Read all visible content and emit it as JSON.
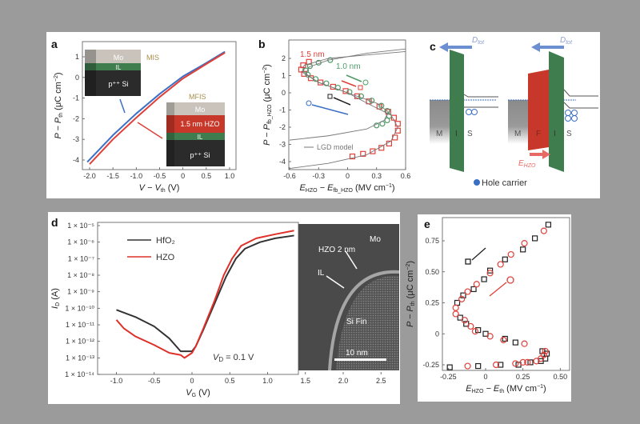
{
  "colors": {
    "background": "#9b9b9b",
    "panel": "#ffffff",
    "blue": "#3b6fc4",
    "red": "#e0403a",
    "green": "#4e9a68",
    "black": "#222222",
    "gray_curve": "#777777",
    "green_layer": "#3f7d4f",
    "red_layer": "#c8382a"
  },
  "panel_labels": [
    "a",
    "b",
    "c",
    "d",
    "e"
  ],
  "chart_data": [
    {
      "panel": "a",
      "type": "line",
      "xlabel": {
        "main": "V − V",
        "sub": "th",
        "unit": " (V)"
      },
      "ylabel": {
        "main": "P − P",
        "sub": "th",
        "unit": " (μC cm",
        "sup": "−2",
        "close": ")"
      },
      "xlim": [
        -2.2,
        1.1
      ],
      "ylim": [
        -4.5,
        1.5
      ],
      "xticks": [
        "-2.0",
        "-1.5",
        "-1.0",
        "-0.5",
        "0",
        "0.5",
        "1.0"
      ],
      "xtick_values": [
        -2,
        -1.5,
        -1,
        -0.5,
        0,
        0.5,
        1
      ],
      "yticks": [
        "1",
        "0",
        "-1",
        "-2",
        "-3",
        "-4"
      ],
      "ytick_values": [
        1,
        0,
        -1,
        -2,
        -3,
        -4
      ],
      "series": [
        {
          "name": "MIS",
          "color": "#3b6fc4",
          "x": [
            -2.05,
            -1.5,
            -1.0,
            -0.5,
            0,
            0.5,
            0.9
          ],
          "y": [
            -4.1,
            -2.8,
            -1.75,
            -0.8,
            0.05,
            0.7,
            1.25
          ]
        },
        {
          "name": "MFIS",
          "color": "#e0403a",
          "x": [
            -2.0,
            -1.5,
            -1.0,
            -0.5,
            0,
            0.5,
            0.9
          ],
          "y": [
            -4.2,
            -3.0,
            -1.95,
            -0.95,
            -0.05,
            0.65,
            1.2
          ]
        }
      ],
      "insets": {
        "mis": {
          "title": "MIS",
          "layers": [
            "Mo",
            "IL",
            "p⁺⁺ Si"
          ]
        },
        "mfis": {
          "title": "MFIS",
          "layers": [
            "Mo",
            "1.5 nm HZO",
            "IL",
            "p⁺⁺ Si"
          ]
        }
      }
    },
    {
      "panel": "b",
      "type": "scatter",
      "xlabel": {
        "main": "E",
        "sub": "HZO",
        "mid": " − E",
        "sub2": "fb_HZO",
        "unit": " (MV cm",
        "sup": "−1",
        "close": ")"
      },
      "ylabel": {
        "main": "P − P",
        "sub": "fb_HZO",
        "unit": " (μC cm",
        "sup": "−2",
        "close": ")"
      },
      "xlim": [
        -0.6,
        0.6
      ],
      "ylim": [
        -4.4,
        2.6
      ],
      "xticks": [
        "-0.6",
        "-0.3",
        "0",
        "0.3",
        "0.6"
      ],
      "xtick_values": [
        -0.6,
        -0.3,
        0,
        0.3,
        0.6
      ],
      "yticks": [
        "2",
        "1",
        "0",
        "-1",
        "-2",
        "-3",
        "-4"
      ],
      "ytick_values": [
        2,
        1,
        0,
        -1,
        -2,
        -3,
        -4
      ],
      "series": [
        {
          "name": "1.5 nm",
          "marker": "square",
          "color": "#e0403a",
          "x": [
            -0.4,
            -0.46,
            -0.48,
            -0.45,
            -0.38,
            -0.28,
            -0.15,
            -0.02,
            0.1,
            0.22,
            0.33,
            0.42,
            0.48,
            0.52,
            0.52,
            0.49,
            0.43,
            0.35,
            0.26,
            0.16,
            0.05
          ],
          "y": [
            1.8,
            1.6,
            1.35,
            1.1,
            0.85,
            0.6,
            0.35,
            0.1,
            -0.2,
            -0.5,
            -0.8,
            -1.1,
            -1.45,
            -1.8,
            -2.2,
            -2.6,
            -2.95,
            -3.2,
            -3.4,
            -3.55,
            -3.7
          ]
        },
        {
          "name": "1.0 nm",
          "marker": "circle",
          "color": "#4e9a68",
          "x": [
            -0.18,
            -0.3,
            -0.39,
            -0.43,
            -0.41,
            -0.33,
            -0.22,
            -0.1,
            0.02,
            0.14,
            0.25,
            0.35,
            0.41,
            0.43,
            0.41,
            0.36,
            0.3
          ],
          "y": [
            1.9,
            1.75,
            1.55,
            1.3,
            1.05,
            0.8,
            0.55,
            0.3,
            0.05,
            -0.2,
            -0.45,
            -0.75,
            -1.05,
            -1.35,
            -1.6,
            -1.8,
            -1.9
          ]
        },
        {
          "name": "LGD model",
          "marker": "line",
          "color": "#777777",
          "x": [
            -0.6,
            -0.2,
            0.2,
            0.38,
            0.42,
            0.3,
            0,
            -0.3,
            -0.43,
            -0.4,
            -0.2,
            0.2,
            0.6
          ],
          "y": [
            -2.75,
            -2.5,
            -2.1,
            -1.6,
            -1.1,
            -0.6,
            0,
            0.6,
            1.1,
            1.5,
            1.9,
            2.3,
            2.55
          ]
        },
        {
          "marker": "line",
          "color": "#777777",
          "x": [
            -0.6,
            -0.2,
            0.2,
            0.45,
            0.52,
            0.45,
            0.2,
            0,
            -0.3,
            -0.47,
            -0.45,
            -0.2,
            0.2,
            0.6
          ],
          "y": [
            -4.4,
            -4.1,
            -3.6,
            -2.8,
            -2.0,
            -1.3,
            -0.6,
            0,
            0.6,
            1.2,
            1.6,
            2.0,
            2.2,
            2.4
          ]
        }
      ],
      "legend": {
        "lgd": "LGD model",
        "label_15": "1.5 nm",
        "label_10": "1.0 nm"
      }
    },
    {
      "panel": "d",
      "type": "line",
      "yscale": "log",
      "xlabel": {
        "main": "V",
        "sub": "G",
        "unit": " (V)"
      },
      "ylabel": {
        "main": "I",
        "sub": "D",
        "unit": " (A)"
      },
      "xlim": [
        -1.2,
        2.7
      ],
      "ylim": [
        1e-14,
        1e-05
      ],
      "xticks": [
        "-1.0",
        "-0.5",
        "0",
        "0.5",
        "1.0",
        "1.5",
        "2.0",
        "2.5"
      ],
      "xtick_values": [
        -1,
        -0.5,
        0,
        0.5,
        1,
        1.5,
        2,
        2.5
      ],
      "yticks": [
        "1 × 10⁻⁵",
        "1 × 10⁻⁶",
        "1 × 10⁻⁷",
        "1 × 10⁻⁸",
        "1 × 10⁻⁹",
        "1 × 10⁻¹⁰",
        "1 × 10⁻¹¹",
        "1 × 10⁻¹²",
        "1 × 10⁻¹³",
        "1 × 10⁻¹⁴"
      ],
      "ytick_exponents": [
        -5,
        -6,
        -7,
        -8,
        -9,
        -10,
        -11,
        -12,
        -13,
        -14
      ],
      "series": [
        {
          "name": "HfO₂",
          "color": "#333333",
          "x": [
            -1.0,
            -0.75,
            -0.5,
            -0.3,
            -0.15,
            0,
            0.05,
            0.15,
            0.3,
            0.45,
            0.58,
            0.7,
            0.9,
            1.1,
            1.35
          ],
          "y": [
            8e-11,
            3e-11,
            8e-12,
            1.5e-12,
            2.5e-13,
            2.5e-13,
            5e-13,
            5e-12,
            2e-10,
            8e-09,
            1e-07,
            4e-07,
            1e-06,
            1.7e-06,
            2.5e-06
          ]
        },
        {
          "name": "HZO",
          "color": "#e0302a",
          "x": [
            -1.0,
            -0.9,
            -0.75,
            -0.5,
            -0.3,
            -0.15,
            -0.1,
            0,
            0.05,
            0.15,
            0.3,
            0.42,
            0.53,
            0.65,
            0.85,
            1.1,
            1.35
          ],
          "y": [
            2e-11,
            6e-12,
            2e-12,
            6e-13,
            2e-13,
            1.5e-13,
            1e-13,
            2e-13,
            5e-13,
            6e-12,
            3e-10,
            1e-08,
            1e-07,
            6e-07,
            1.7e-06,
            3e-06,
            5e-06
          ]
        }
      ],
      "annotation": {
        "main": "V",
        "sub": "D",
        "rest": " = 0.1 V"
      },
      "tem": {
        "labels": [
          "Mo",
          "HZO 2 nm",
          "IL",
          "Si Fin"
        ],
        "scale_bar": "10 nm"
      }
    },
    {
      "panel": "e",
      "type": "scatter",
      "xlabel": {
        "main": "E",
        "sub": "HZO",
        "mid": " − E",
        "sub2": "th",
        "unit": " (MV cm",
        "sup": "−1",
        "close": ")"
      },
      "ylabel": {
        "main": "P − P",
        "sub": "th",
        "unit": " (μC cm",
        "sup": "−2",
        "close": ")"
      },
      "xlim": [
        -0.27,
        0.55
      ],
      "ylim": [
        -0.3,
        0.9
      ],
      "xticks": [
        "-0.25",
        "0",
        "0.25",
        "0.50"
      ],
      "xtick_values": [
        -0.25,
        0,
        0.25,
        0.5
      ],
      "yticks": [
        "0.75",
        "0.50",
        "0.25",
        "0",
        "-0.25"
      ],
      "ytick_values": [
        0.75,
        0.5,
        0.25,
        0,
        -0.25
      ],
      "series": [
        {
          "marker": "square",
          "color": "#222222",
          "x": [
            0.42,
            0.33,
            0.25,
            0.13,
            0.03,
            -0.01,
            -0.08,
            -0.15,
            -0.19,
            -0.17,
            -0.13,
            -0.05,
            0,
            0.13,
            0.2,
            0.38,
            0.41,
            0.4,
            0.37,
            0.3,
            0.22,
            0.1,
            -0.05,
            -0.24
          ],
          "y": [
            0.88,
            0.77,
            0.68,
            0.6,
            0.51,
            0.44,
            0.36,
            0.31,
            0.25,
            0.13,
            0.08,
            0.03,
            0,
            -0.04,
            -0.07,
            -0.14,
            -0.16,
            -0.2,
            -0.22,
            -0.23,
            -0.25,
            -0.25,
            -0.26,
            -0.27
          ]
        },
        {
          "marker": "circle",
          "color": "#e0403a",
          "x": [
            0.39,
            0.26,
            0.17,
            0.1,
            0.03,
            -0.06,
            -0.12,
            -0.16,
            -0.2,
            -0.2,
            -0.14,
            -0.1,
            -0.07,
            0.03,
            0.12,
            0.26,
            0.4,
            0.39,
            0.37,
            0.34,
            0.28,
            0.25,
            0.2,
            0.07,
            -0.12
          ],
          "y": [
            0.83,
            0.73,
            0.64,
            0.56,
            0.49,
            0.4,
            0.34,
            0.28,
            0.21,
            0.16,
            0.11,
            0.06,
            0.02,
            -0.02,
            -0.05,
            -0.08,
            -0.14,
            -0.17,
            -0.2,
            -0.22,
            -0.23,
            -0.23,
            -0.24,
            -0.25,
            -0.26
          ]
        }
      ]
    }
  ],
  "diagram_c": {
    "d_tot": {
      "main": "D",
      "sub": "tot"
    },
    "left_labels": [
      "M",
      "I",
      "S"
    ],
    "right_labels": [
      "M",
      "F",
      "I",
      "S"
    ],
    "e_hzo": {
      "main": "E",
      "sub": "HZO"
    },
    "legend": "Hole carrier"
  }
}
